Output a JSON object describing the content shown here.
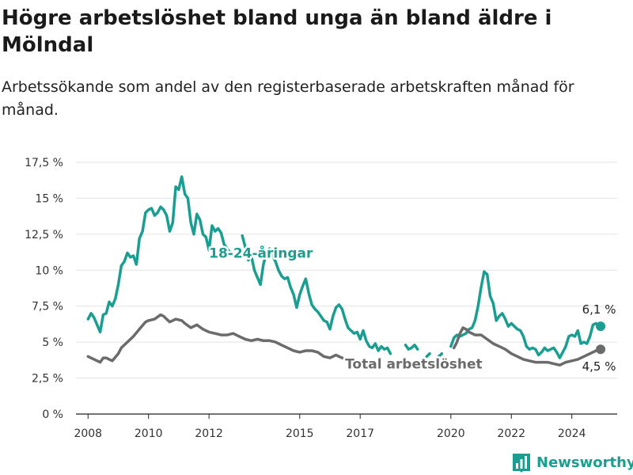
{
  "header": {
    "title": "Högre arbetslöshet bland unga än bland äldre i Mölndal",
    "subtitle": "Arbetssökande som andel av den registerbaserade arbetskraften månad för månad."
  },
  "brand": {
    "name": "Newsworthy",
    "icon": "bar-chart-logo-icon",
    "color": "#1b9e92"
  },
  "chart_data": {
    "type": "line",
    "title": "Högre arbetslöshet bland unga än bland äldre i Mölndal",
    "subtitle": "Arbetssökande som andel av den registerbaserade arbetskraften månad för månad.",
    "xlabel": "",
    "ylabel": "",
    "xlim": [
      2007.6,
      2025.5
    ],
    "ylim": [
      0,
      17.5
    ],
    "yticks": [
      0,
      2.5,
      5,
      7.5,
      10,
      12.5,
      15,
      17.5
    ],
    "ytick_labels": [
      "0 %",
      "2,5 %",
      "5 %",
      "7,5 %",
      "10 %",
      "12,5 %",
      "15 %",
      "17,5 %"
    ],
    "xticks": [
      2008,
      2010,
      2012,
      2015,
      2017,
      2020,
      2022,
      2024
    ],
    "xtick_labels": [
      "2008",
      "2010",
      "2012",
      "2015",
      "2017",
      "2020",
      "2022",
      "2024"
    ],
    "grid": "horizontal",
    "legend": "none",
    "series": [
      {
        "name": "18-24-åringar",
        "color": "#1b9e92",
        "end_label": "6,1 %",
        "segments": [
          [
            [
              2008.0,
              6.6
            ],
            [
              2008.1,
              7.0
            ],
            [
              2008.2,
              6.7
            ],
            [
              2008.3,
              6.2
            ],
            [
              2008.4,
              5.7
            ],
            [
              2008.5,
              6.9
            ],
            [
              2008.6,
              7.0
            ],
            [
              2008.7,
              7.8
            ],
            [
              2008.8,
              7.5
            ],
            [
              2008.9,
              8.0
            ],
            [
              2009.0,
              9.0
            ],
            [
              2009.1,
              10.3
            ],
            [
              2009.2,
              10.6
            ],
            [
              2009.3,
              11.2
            ],
            [
              2009.4,
              10.9
            ],
            [
              2009.5,
              11.0
            ],
            [
              2009.6,
              10.4
            ],
            [
              2009.7,
              12.2
            ],
            [
              2009.8,
              12.7
            ],
            [
              2009.9,
              14.0
            ],
            [
              2010.0,
              14.2
            ],
            [
              2010.1,
              14.3
            ],
            [
              2010.2,
              13.8
            ],
            [
              2010.3,
              14.0
            ],
            [
              2010.4,
              14.4
            ],
            [
              2010.5,
              14.2
            ],
            [
              2010.6,
              13.8
            ],
            [
              2010.7,
              12.7
            ],
            [
              2010.8,
              13.3
            ],
            [
              2010.9,
              15.8
            ],
            [
              2011.0,
              15.6
            ],
            [
              2011.1,
              16.5
            ],
            [
              2011.2,
              15.3
            ],
            [
              2011.3,
              15.0
            ],
            [
              2011.4,
              13.3
            ],
            [
              2011.5,
              12.5
            ],
            [
              2011.6,
              13.9
            ],
            [
              2011.7,
              13.5
            ],
            [
              2011.8,
              12.5
            ],
            [
              2011.9,
              12.3
            ],
            [
              2012.0,
              11.4
            ],
            [
              2012.1,
              13.1
            ],
            [
              2012.2,
              12.7
            ],
            [
              2012.3,
              12.9
            ],
            [
              2012.4,
              12.6
            ],
            [
              2012.5,
              11.8
            ],
            [
              2012.6,
              11.5
            ],
            [
              2012.7,
              11.2
            ]
          ],
          [
            [
              2013.1,
              12.4
            ],
            [
              2013.2,
              11.6
            ],
            [
              2013.3,
              10.7
            ],
            [
              2013.4,
              11.0
            ],
            [
              2013.5,
              10.0
            ],
            [
              2013.6,
              9.5
            ],
            [
              2013.7,
              9.0
            ],
            [
              2013.8,
              10.4
            ],
            [
              2013.9,
              11.2
            ],
            [
              2014.0,
              11.5
            ],
            [
              2014.1,
              11.0
            ],
            [
              2014.2,
              10.6
            ],
            [
              2014.3,
              10.0
            ],
            [
              2014.4,
              9.6
            ],
            [
              2014.5,
              9.4
            ],
            [
              2014.6,
              9.5
            ],
            [
              2014.7,
              8.8
            ],
            [
              2014.8,
              8.3
            ],
            [
              2014.9,
              7.4
            ],
            [
              2015.0,
              8.3
            ],
            [
              2015.1,
              8.9
            ],
            [
              2015.2,
              9.4
            ],
            [
              2015.3,
              8.4
            ],
            [
              2015.4,
              7.6
            ],
            [
              2015.5,
              7.3
            ],
            [
              2015.6,
              7.1
            ],
            [
              2015.7,
              6.8
            ],
            [
              2015.8,
              6.5
            ],
            [
              2015.9,
              6.4
            ],
            [
              2016.0,
              5.9
            ],
            [
              2016.1,
              6.8
            ],
            [
              2016.2,
              7.4
            ],
            [
              2016.3,
              7.6
            ],
            [
              2016.4,
              7.3
            ],
            [
              2016.5,
              6.6
            ],
            [
              2016.6,
              6.0
            ],
            [
              2016.7,
              5.8
            ],
            [
              2016.8,
              5.6
            ],
            [
              2016.9,
              5.7
            ],
            [
              2017.0,
              5.2
            ],
            [
              2017.1,
              5.8
            ],
            [
              2017.2,
              5.1
            ],
            [
              2017.3,
              4.7
            ],
            [
              2017.4,
              4.6
            ],
            [
              2017.5,
              4.9
            ],
            [
              2017.6,
              4.4
            ],
            [
              2017.7,
              4.7
            ],
            [
              2017.8,
              4.5
            ],
            [
              2017.9,
              4.6
            ],
            [
              2018.0,
              4.2
            ]
          ],
          [
            [
              2018.5,
              4.8
            ],
            [
              2018.6,
              4.5
            ],
            [
              2018.7,
              4.6
            ],
            [
              2018.8,
              4.8
            ],
            [
              2018.9,
              4.5
            ]
          ],
          [
            [
              2019.2,
              4.0
            ],
            [
              2019.3,
              4.2
            ]
          ],
          [
            [
              2019.6,
              4.0
            ],
            [
              2019.7,
              4.2
            ]
          ],
          [
            [
              2020.0,
              4.7
            ],
            [
              2020.1,
              5.3
            ],
            [
              2020.2,
              5.5
            ],
            [
              2020.3,
              5.4
            ],
            [
              2020.4,
              5.5
            ],
            [
              2020.5,
              5.6
            ],
            [
              2020.6,
              5.9
            ],
            [
              2020.7,
              6.0
            ],
            [
              2020.8,
              6.5
            ],
            [
              2020.9,
              7.5
            ],
            [
              2021.0,
              8.8
            ],
            [
              2021.1,
              9.9
            ],
            [
              2021.2,
              9.7
            ],
            [
              2021.3,
              8.2
            ],
            [
              2021.4,
              7.7
            ],
            [
              2021.5,
              6.5
            ],
            [
              2021.6,
              6.8
            ],
            [
              2021.7,
              7.0
            ],
            [
              2021.8,
              6.6
            ],
            [
              2021.9,
              6.1
            ],
            [
              2022.0,
              6.3
            ],
            [
              2022.1,
              6.1
            ],
            [
              2022.2,
              5.9
            ],
            [
              2022.3,
              5.8
            ],
            [
              2022.4,
              5.4
            ],
            [
              2022.5,
              4.7
            ],
            [
              2022.6,
              4.5
            ],
            [
              2022.7,
              4.6
            ],
            [
              2022.8,
              4.5
            ],
            [
              2022.9,
              4.1
            ],
            [
              2023.0,
              4.3
            ],
            [
              2023.1,
              4.6
            ],
            [
              2023.2,
              4.4
            ],
            [
              2023.3,
              4.5
            ],
            [
              2023.4,
              4.6
            ],
            [
              2023.5,
              4.3
            ],
            [
              2023.6,
              3.9
            ],
            [
              2023.7,
              4.3
            ],
            [
              2023.8,
              4.7
            ],
            [
              2023.9,
              5.4
            ],
            [
              2024.0,
              5.5
            ],
            [
              2024.1,
              5.4
            ],
            [
              2024.2,
              5.8
            ],
            [
              2024.3,
              4.9
            ],
            [
              2024.4,
              5.0
            ],
            [
              2024.5,
              4.9
            ],
            [
              2024.6,
              5.4
            ],
            [
              2024.7,
              6.2
            ],
            [
              2024.8,
              6.3
            ],
            [
              2024.9,
              6.1
            ]
          ]
        ]
      },
      {
        "name": "Total arbetslöshet",
        "color": "#6b6b6b",
        "end_label": "4,5 %",
        "segments": [
          [
            [
              2008.0,
              4.0
            ],
            [
              2008.2,
              3.8
            ],
            [
              2008.4,
              3.6
            ],
            [
              2008.5,
              3.9
            ],
            [
              2008.6,
              3.9
            ],
            [
              2008.8,
              3.7
            ],
            [
              2009.0,
              4.2
            ],
            [
              2009.1,
              4.6
            ],
            [
              2009.3,
              5.0
            ],
            [
              2009.5,
              5.4
            ],
            [
              2009.7,
              5.9
            ],
            [
              2009.9,
              6.4
            ],
            [
              2010.0,
              6.5
            ],
            [
              2010.2,
              6.6
            ],
            [
              2010.4,
              6.9
            ],
            [
              2010.5,
              6.8
            ],
            [
              2010.6,
              6.6
            ],
            [
              2010.7,
              6.4
            ],
            [
              2010.8,
              6.5
            ],
            [
              2010.9,
              6.6
            ],
            [
              2011.1,
              6.5
            ],
            [
              2011.2,
              6.3
            ],
            [
              2011.4,
              6.0
            ],
            [
              2011.6,
              6.2
            ],
            [
              2011.8,
              5.9
            ],
            [
              2012.0,
              5.7
            ],
            [
              2012.2,
              5.6
            ],
            [
              2012.4,
              5.5
            ],
            [
              2012.6,
              5.5
            ],
            [
              2012.8,
              5.6
            ],
            [
              2013.0,
              5.4
            ],
            [
              2013.2,
              5.2
            ],
            [
              2013.4,
              5.1
            ],
            [
              2013.6,
              5.2
            ],
            [
              2013.8,
              5.1
            ],
            [
              2014.0,
              5.1
            ],
            [
              2014.2,
              5.0
            ],
            [
              2014.4,
              4.8
            ],
            [
              2014.6,
              4.6
            ],
            [
              2014.8,
              4.4
            ],
            [
              2015.0,
              4.3
            ],
            [
              2015.2,
              4.4
            ],
            [
              2015.4,
              4.4
            ],
            [
              2015.6,
              4.3
            ],
            [
              2015.8,
              4.0
            ],
            [
              2016.0,
              3.9
            ],
            [
              2016.2,
              4.1
            ],
            [
              2016.4,
              3.9
            ],
            [
              2016.6,
              3.8
            ],
            [
              2016.8,
              3.7
            ],
            [
              2016.9,
              3.4
            ],
            [
              2017.0,
              3.5
            ],
            [
              2017.2,
              3.4
            ],
            [
              2017.4,
              3.3
            ]
          ],
          [
            [
              2020.1,
              4.6
            ],
            [
              2020.2,
              5.0
            ],
            [
              2020.3,
              5.6
            ],
            [
              2020.4,
              6.0
            ],
            [
              2020.5,
              5.9
            ],
            [
              2020.6,
              5.7
            ],
            [
              2020.8,
              5.5
            ],
            [
              2021.0,
              5.5
            ],
            [
              2021.2,
              5.2
            ],
            [
              2021.4,
              4.9
            ],
            [
              2021.6,
              4.7
            ],
            [
              2021.8,
              4.5
            ],
            [
              2022.0,
              4.2
            ],
            [
              2022.2,
              4.0
            ],
            [
              2022.4,
              3.8
            ],
            [
              2022.6,
              3.7
            ],
            [
              2022.8,
              3.6
            ],
            [
              2023.0,
              3.6
            ],
            [
              2023.2,
              3.6
            ],
            [
              2023.4,
              3.5
            ],
            [
              2023.6,
              3.4
            ],
            [
              2023.8,
              3.6
            ],
            [
              2024.0,
              3.7
            ],
            [
              2024.2,
              3.8
            ],
            [
              2024.4,
              4.0
            ],
            [
              2024.6,
              4.2
            ],
            [
              2024.8,
              4.4
            ],
            [
              2024.9,
              4.5
            ]
          ]
        ]
      }
    ],
    "annotations": [
      {
        "text": "18-24-åringar",
        "x": 2012.0,
        "y": 11.2,
        "series": 0
      },
      {
        "text": "Total arbetslöshet",
        "x": 2016.5,
        "y": 3.5,
        "series": 1
      }
    ]
  }
}
